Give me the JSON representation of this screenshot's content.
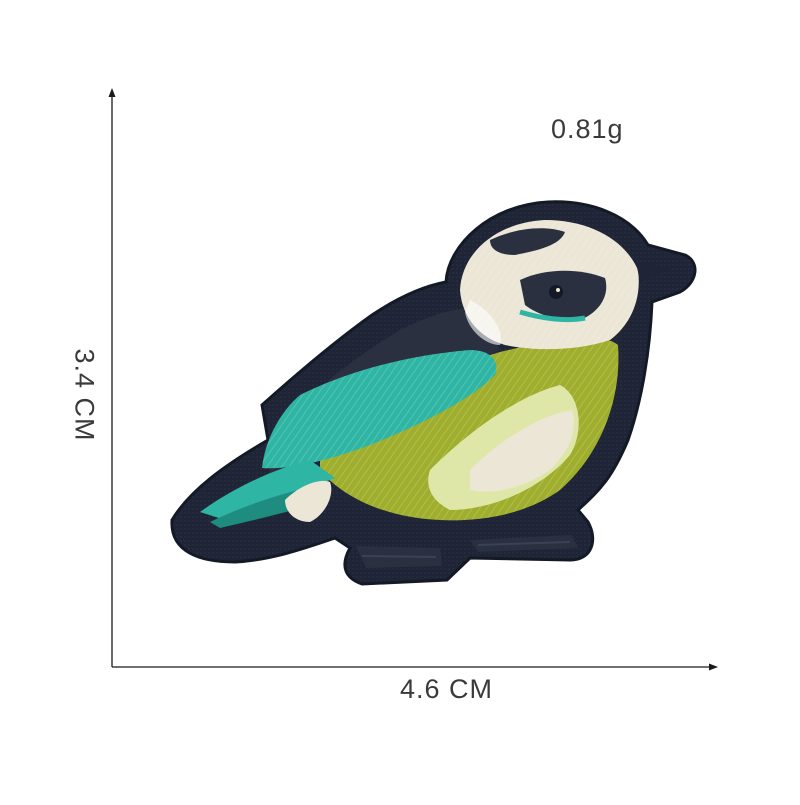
{
  "product": {
    "weight": "0.81g",
    "width": "4.6 CM",
    "height": "3.4 CM",
    "subject": "bird-embroidered-patch"
  },
  "colors": {
    "border": "#1f2536",
    "teal": "#2fb5a3",
    "olive": "#9fae2c",
    "cream": "#ece6d6",
    "pale_green": "#dfe7a8",
    "dark_navy": "#2a3040",
    "axis": "#1a1a1a"
  }
}
